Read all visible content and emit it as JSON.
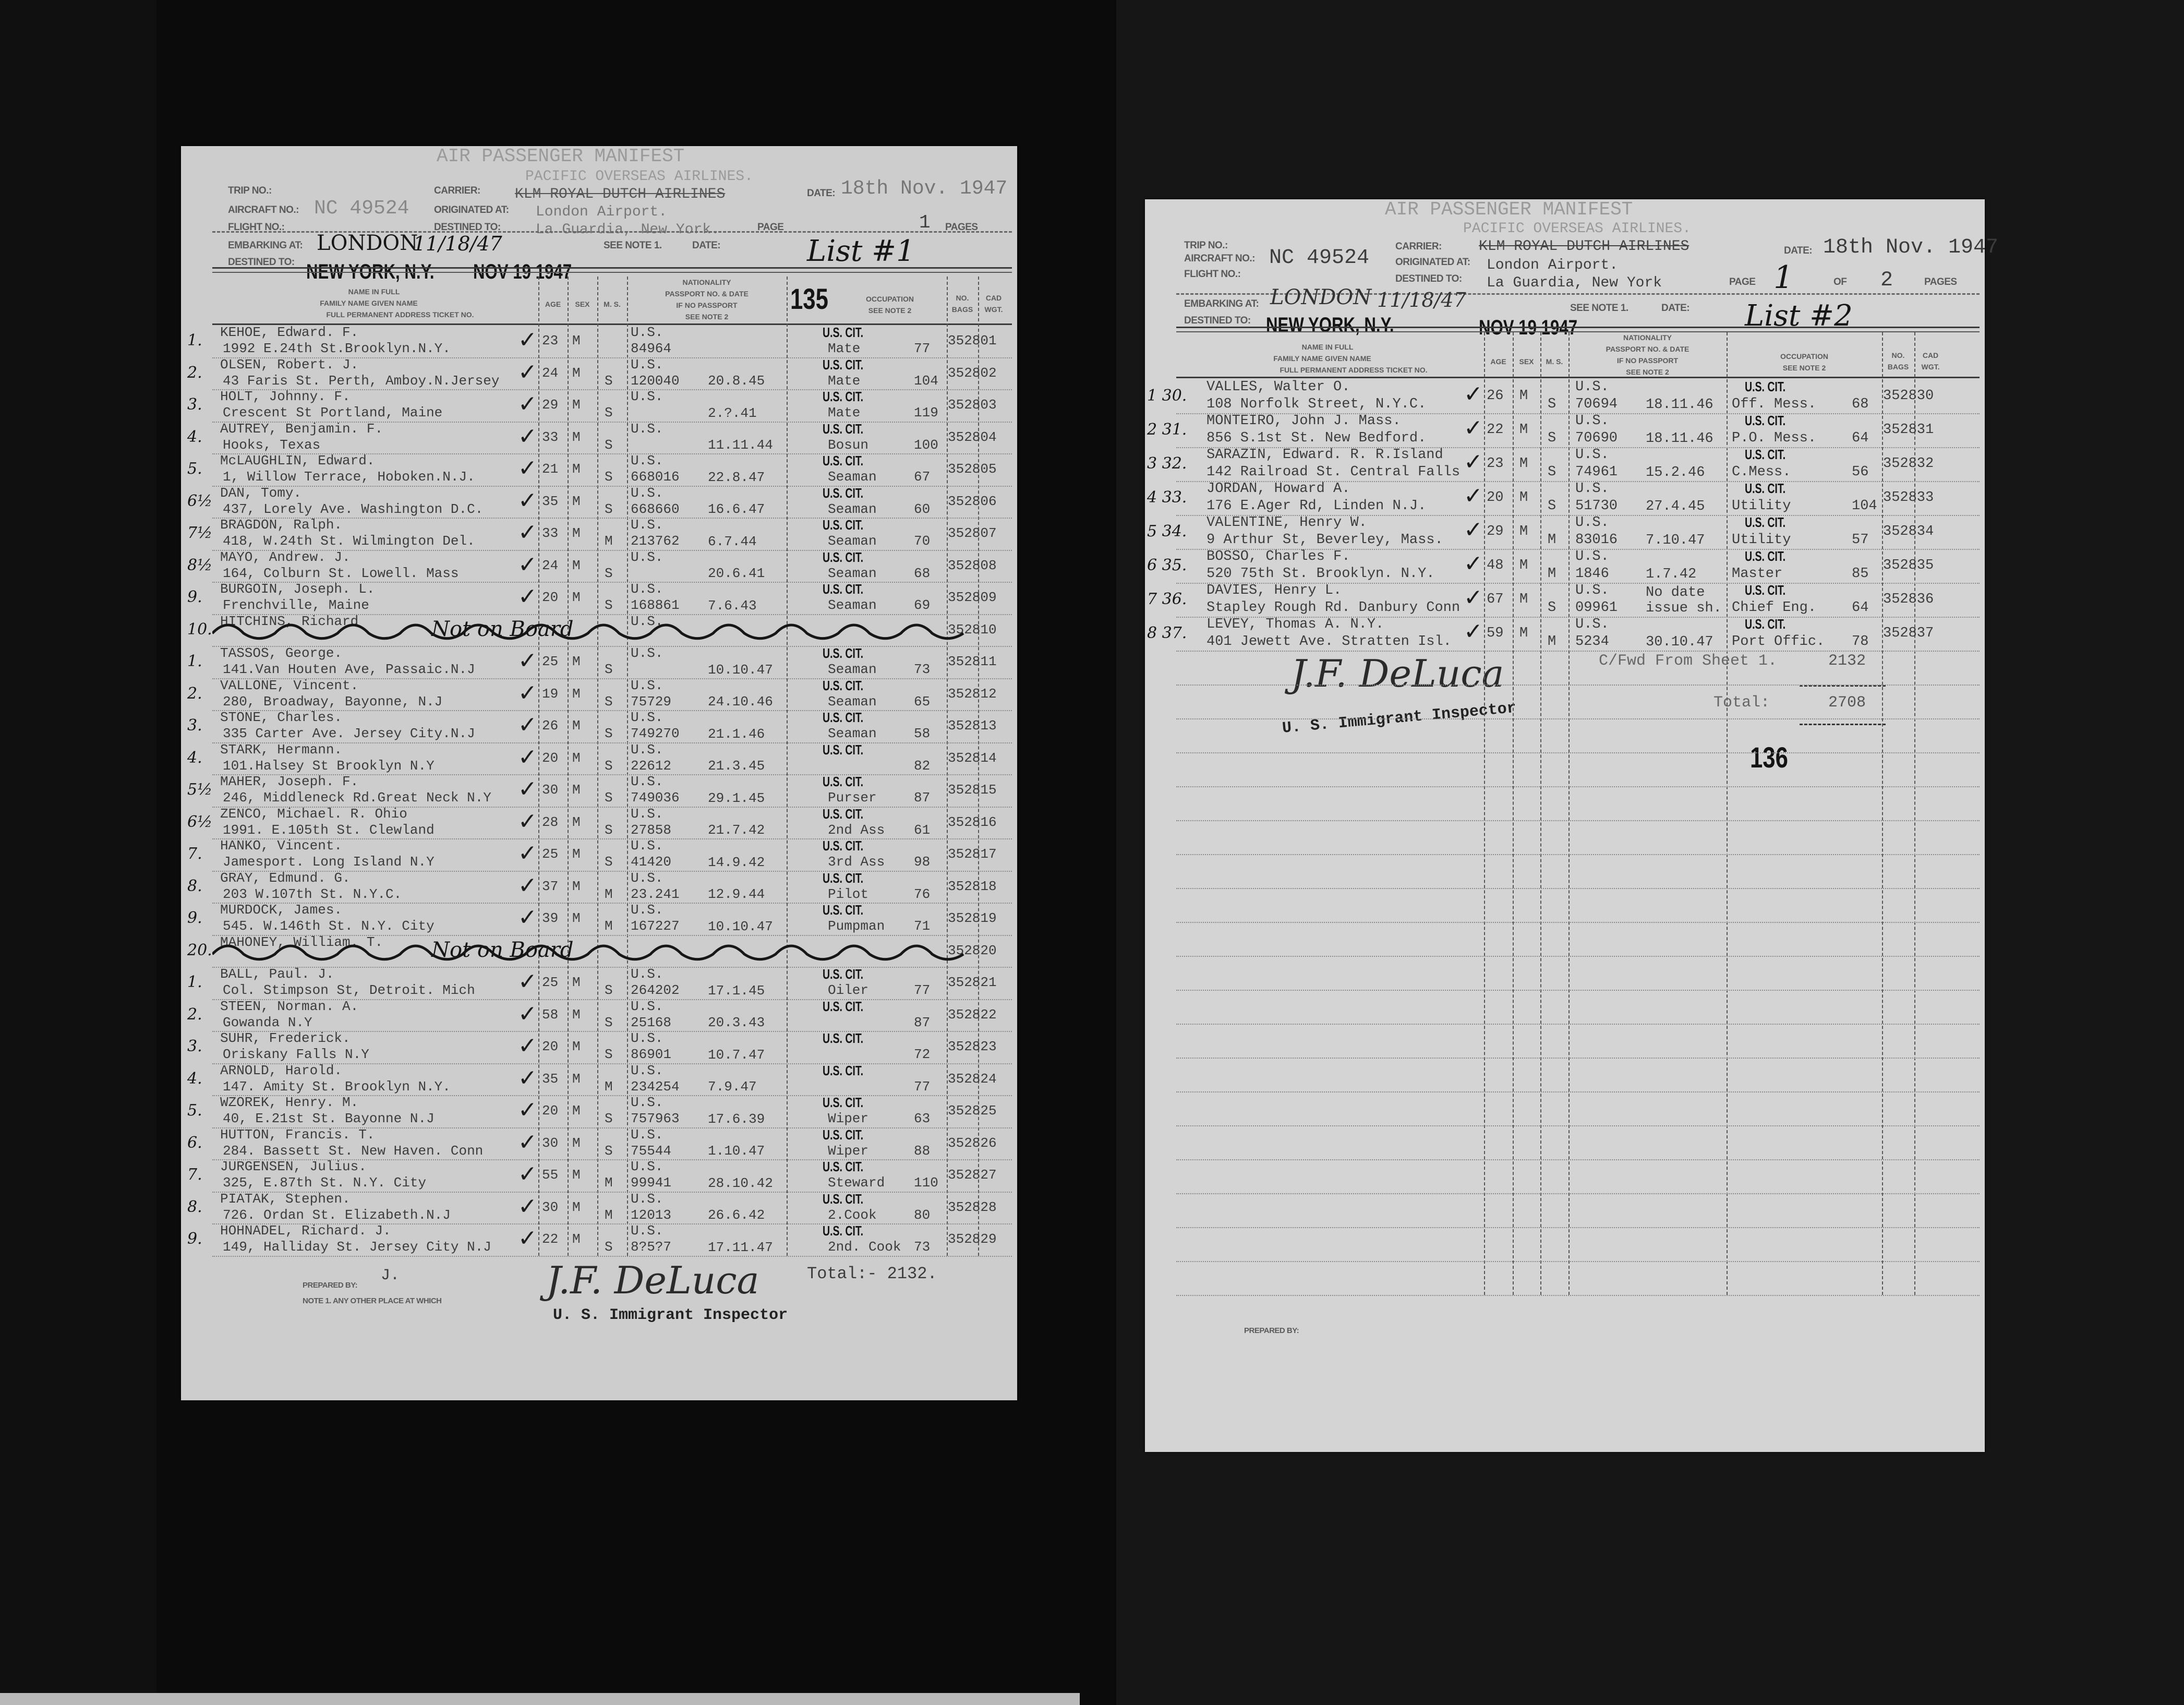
{
  "colors": {
    "paper_left": "#cdcdcd",
    "paper_right": "#d4d4d4",
    "background": "#0b0b0b",
    "ink": "#161616",
    "type": "#3c3c3c"
  },
  "left_page": {
    "form_title": "AIR PASSENGER MANIFEST",
    "carrier_heading": "PACIFIC OVERSEAS AIRLINES.",
    "labels": {
      "trip_no": "TRIP NO.:",
      "carrier": "CARRIER:",
      "date": "DATE:",
      "aircraft_no": "AIRCRAFT NO.:",
      "originated_at": "ORIGINATED AT:",
      "flight_no": "FLIGHT NO.:",
      "destined_to": "DESTINED TO:",
      "page": "PAGE",
      "pages": "PAGES",
      "embarking_at": "EMBARKING AT:",
      "see_note": "SEE NOTE 1.",
      "date2": "DATE:",
      "destined_to2": "DESTINED TO:"
    },
    "carrier_struck": "KLM ROYAL DUTCH AIRLINES",
    "date": "18th Nov. 1947",
    "aircraft_no": "NC 49524",
    "originated_at": "London Airport.",
    "destined_to": "La Guardia, New York.",
    "page_number": "1",
    "list_label": "List #1",
    "embarking_at": "LONDON",
    "embark_date": "11/18/47",
    "final_destination": "NEW YORK, N.Y.",
    "received_stamp": "NOV 19 1947",
    "sheet_stamp": "135",
    "columns": {
      "name_in_full": "NAME IN FULL",
      "family_given": "FAMILY NAME      GIVEN NAME",
      "address_ticket": "FULL PERMANENT ADDRESS        TICKET NO.",
      "age": "AGE",
      "sex": "SEX",
      "ms": "M. S.",
      "nationality": "NATIONALITY",
      "passport": "PASSPORT NO. & DATE",
      "if_no_passport": "IF NO PASSPORT",
      "see_note2": "SEE NOTE 2",
      "occupation": "OCCUPATION",
      "occ_note": "SEE NOTE 2",
      "bags": "NO. BAGS",
      "cad": "CAD WGT."
    },
    "rows": [
      {
        "num": "1.",
        "name": "KEHOE, Edward. F.",
        "address": "1992 E.24th St.Brooklyn.N.Y.",
        "age": "23",
        "sex": "M",
        "ms": "",
        "nat": "U.S.",
        "passport": "84964",
        "date": "",
        "cit": "U.S. CIT.",
        "occ": "Mate",
        "fare": "77",
        "no": "352801"
      },
      {
        "num": "2.",
        "name": "OLSEN, Robert. J.",
        "address": "43 Faris St. Perth, Amboy.N.Jersey",
        "age": "24",
        "sex": "M",
        "ms": "S",
        "nat": "U.S.",
        "passport": "120040",
        "date": "20.8.45",
        "cit": "U.S. CIT.",
        "occ": "Mate",
        "fare": "104",
        "no": "352802"
      },
      {
        "num": "3.",
        "name": "HOLT, Johnny. F.",
        "address": "Crescent St Portland, Maine",
        "age": "29",
        "sex": "M",
        "ms": "S",
        "nat": "U.S.",
        "passport": "",
        "date": "2.?.41",
        "cit": "U.S. CIT.",
        "occ": "Mate",
        "fare": "119",
        "no": "352803"
      },
      {
        "num": "4.",
        "name": "AUTREY, Benjamin. F.",
        "address": "Hooks, Texas",
        "age": "33",
        "sex": "M",
        "ms": "S",
        "nat": "U.S.",
        "passport": "",
        "date": "11.11.44",
        "cit": "U.S. CIT.",
        "occ": "Bosun",
        "fare": "100",
        "no": "352804"
      },
      {
        "num": "5.",
        "name": "McLAUGHLIN, Edward.",
        "address": "1, Willow Terrace, Hoboken.N.J.",
        "age": "21",
        "sex": "M",
        "ms": "S",
        "nat": "U.S.",
        "passport": "668016",
        "date": "22.8.47",
        "cit": "U.S. CIT.",
        "occ": "Seaman",
        "fare": "67",
        "no": "352805"
      },
      {
        "num": "6½",
        "name": "DAN, Tomy.",
        "address": "437, Lorely Ave. Washington D.C.",
        "age": "35",
        "sex": "M",
        "ms": "S",
        "nat": "U.S.",
        "passport": "668660",
        "date": "16.6.47",
        "cit": "U.S. CIT.",
        "occ": "Seaman",
        "fare": "60",
        "no": "352806"
      },
      {
        "num": "7½",
        "name": "BRAGDON, Ralph.",
        "address": "418, W.24th St. Wilmington Del.",
        "age": "33",
        "sex": "M",
        "ms": "M",
        "nat": "U.S.",
        "passport": "213762",
        "date": "6.7.44",
        "cit": "U.S. CIT.",
        "occ": "Seaman",
        "fare": "70",
        "no": "352807"
      },
      {
        "num": "8½",
        "name": "MAYO, Andrew. J.",
        "address": "164, Colburn St. Lowell. Mass",
        "age": "24",
        "sex": "M",
        "ms": "S",
        "nat": "U.S.",
        "passport": "",
        "date": "20.6.41",
        "cit": "U.S. CIT.",
        "occ": "Seaman",
        "fare": "68",
        "no": "352808"
      },
      {
        "num": "9.",
        "name": "BURGOIN, Joseph. L.",
        "address": "Frenchville, Maine",
        "age": "20",
        "sex": "M",
        "ms": "S",
        "nat": "U.S.",
        "passport": "168861",
        "date": "7.6.43",
        "cit": "U.S. CIT.",
        "occ": "Seaman",
        "fare": "69",
        "no": "352809"
      },
      {
        "num": "10.",
        "name": "HITCHINS, Richard",
        "address": "",
        "age": "",
        "sex": "",
        "ms": "",
        "nat": "U.S.",
        "passport": "",
        "date": "",
        "cit": "",
        "occ": "",
        "fare": "",
        "no": "352810",
        "crossed": true,
        "note": "Not on Board"
      },
      {
        "num": "1.",
        "name": "TASSOS, George.",
        "address": "141.Van Houten Ave, Passaic.N.J",
        "age": "25",
        "sex": "M",
        "ms": "S",
        "nat": "U.S.",
        "passport": "",
        "date": "10.10.47",
        "cit": "U.S. CIT.",
        "occ": "Seaman",
        "fare": "73",
        "no": "352811"
      },
      {
        "num": "2.",
        "name": "VALLONE, Vincent.",
        "address": "280, Broadway, Bayonne, N.J",
        "age": "19",
        "sex": "M",
        "ms": "S",
        "nat": "U.S.",
        "passport": "75729",
        "date": "24.10.46",
        "cit": "U.S. CIT.",
        "occ": "Seaman",
        "fare": "65",
        "no": "352812"
      },
      {
        "num": "3.",
        "name": "STONE, Charles.",
        "address": "335 Carter Ave. Jersey City.N.J",
        "age": "26",
        "sex": "M",
        "ms": "S",
        "nat": "U.S.",
        "passport": "749270",
        "date": "21.1.46",
        "cit": "U.S. CIT.",
        "occ": "Seaman",
        "fare": "58",
        "no": "352813"
      },
      {
        "num": "4.",
        "name": "STARK, Hermann.",
        "address": "101.Halsey St Brooklyn N.Y",
        "age": "20",
        "sex": "M",
        "ms": "S",
        "nat": "U.S.",
        "passport": "22612",
        "date": "21.3.45",
        "cit": "U.S. CIT.",
        "occ": "",
        "fare": "82",
        "no": "352814"
      },
      {
        "num": "5½",
        "name": "MAHER, Joseph. F.",
        "address": "246, Middleneck Rd.Great Neck N.Y",
        "age": "30",
        "sex": "M",
        "ms": "S",
        "nat": "U.S.",
        "passport": "749036",
        "date": "29.1.45",
        "cit": "U.S. CIT.",
        "occ": "Purser",
        "fare": "87",
        "no": "352815"
      },
      {
        "num": "6½",
        "name": "ZENCO, Michael. R.        Ohio",
        "address": "1991. E.105th St. Clewland",
        "age": "28",
        "sex": "M",
        "ms": "S",
        "nat": "U.S.",
        "passport": "27858",
        "date": "21.7.42",
        "cit": "U.S. CIT.",
        "occ": "2nd Ass",
        "fare": "61",
        "no": "352816"
      },
      {
        "num": "7.",
        "name": "HANKO, Vincent.",
        "address": "Jamesport. Long Island N.Y",
        "age": "25",
        "sex": "M",
        "ms": "S",
        "nat": "U.S.",
        "passport": "41420",
        "date": "14.9.42",
        "cit": "U.S. CIT.",
        "occ": "3rd Ass",
        "fare": "98",
        "no": "352817"
      },
      {
        "num": "8.",
        "name": "GRAY, Edmund. G.",
        "address": "203 W.107th St. N.Y.C.",
        "age": "37",
        "sex": "M",
        "ms": "M",
        "nat": "U.S.",
        "passport": "23.241",
        "date": "12.9.44",
        "cit": "U.S. CIT.",
        "occ": "Pilot",
        "fare": "76",
        "no": "352818"
      },
      {
        "num": "9.",
        "name": "MURDOCK, James.",
        "address": "545. W.146th St. N.Y. City",
        "age": "39",
        "sex": "M",
        "ms": "M",
        "nat": "U.S.",
        "passport": "167227",
        "date": "10.10.47",
        "cit": "U.S. CIT.",
        "occ": "Pumpman",
        "fare": "71",
        "no": "352819"
      },
      {
        "num": "20.",
        "name": "MAHONEY, William. T.",
        "address": "",
        "age": "",
        "sex": "",
        "ms": "",
        "nat": "",
        "passport": "",
        "date": "",
        "cit": "",
        "occ": "",
        "fare": "",
        "no": "352820",
        "crossed": true,
        "note": "Not on Board"
      },
      {
        "num": "1.",
        "name": "BALL, Paul. J.",
        "address": "Col. Stimpson St, Detroit. Mich",
        "age": "25",
        "sex": "M",
        "ms": "S",
        "nat": "U.S.",
        "passport": "264202",
        "date": "17.1.45",
        "cit": "U.S. CIT.",
        "occ": "Oiler",
        "fare": "77",
        "no": "352821"
      },
      {
        "num": "2.",
        "name": "STEEN, Norman. A.",
        "address": "Gowanda N.Y",
        "age": "58",
        "sex": "M",
        "ms": "S",
        "nat": "U.S.",
        "passport": "25168",
        "date": "20.3.43",
        "cit": "U.S. CIT.",
        "occ": "",
        "fare": "87",
        "no": "352822"
      },
      {
        "num": "3.",
        "name": "SUHR, Frederick.",
        "address": "Oriskany Falls N.Y",
        "age": "20",
        "sex": "M",
        "ms": "S",
        "nat": "U.S.",
        "passport": "86901",
        "date": "10.7.47",
        "cit": "U.S. CIT.",
        "occ": "",
        "fare": "72",
        "no": "352823"
      },
      {
        "num": "4.",
        "name": "ARNOLD, Harold.",
        "address": "147. Amity St. Brooklyn N.Y.",
        "age": "35",
        "sex": "M",
        "ms": "M",
        "nat": "U.S.",
        "passport": "234254",
        "date": "7.9.47",
        "cit": "U.S. CIT.",
        "occ": "",
        "fare": "77",
        "no": "352824"
      },
      {
        "num": "5.",
        "name": "WZOREK, Henry. M.",
        "address": "40, E.21st St. Bayonne N.J",
        "age": "20",
        "sex": "M",
        "ms": "S",
        "nat": "U.S.",
        "passport": "757963",
        "date": "17.6.39",
        "cit": "U.S. CIT.",
        "occ": "Wiper",
        "fare": "63",
        "no": "352825"
      },
      {
        "num": "6.",
        "name": "HUTTON, Francis. T.",
        "address": "284. Bassett St. New Haven. Conn",
        "age": "30",
        "sex": "M",
        "ms": "S",
        "nat": "U.S.",
        "passport": "75544",
        "date": "1.10.47",
        "cit": "U.S. CIT.",
        "occ": "Wiper",
        "fare": "88",
        "no": "352826"
      },
      {
        "num": "7.",
        "name": "JURGENSEN, Julius.",
        "address": "325, E.87th St. N.Y. City",
        "age": "55",
        "sex": "M",
        "ms": "M",
        "nat": "U.S.",
        "passport": "99941",
        "date": "28.10.42",
        "cit": "U.S. CIT.",
        "occ": "Steward",
        "fare": "110",
        "no": "352827"
      },
      {
        "num": "8.",
        "name": "PIATAK, Stephen.",
        "address": "726. Ordan St. Elizabeth.N.J",
        "age": "30",
        "sex": "M",
        "ms": "M",
        "nat": "U.S.",
        "passport": "12013",
        "date": "26.6.42",
        "cit": "U.S. CIT.",
        "occ": "2.Cook",
        "fare": "80",
        "no": "352828"
      },
      {
        "num": "9.",
        "name": "HOHNADEL, Richard. J.",
        "address": "149, Halliday St. Jersey City N.J",
        "age": "22",
        "sex": "M",
        "ms": "S",
        "nat": "U.S.",
        "passport": "8?5?7",
        "date": "17.11.47",
        "cit": "U.S. CIT.",
        "occ": "2nd. Cook",
        "fare": "73",
        "no": "352829"
      }
    ],
    "footer": {
      "initial": "J.",
      "prepared_by": "PREPARED BY:",
      "note": "NOTE 1.  ANY OTHER PLACE AT WHICH",
      "total": "Total:- 2132.",
      "signature": "J.F. DeLuca",
      "inspector": "U. S. Immigrant Inspector"
    }
  },
  "right_page": {
    "form_title": "AIR PASSENGER MANIFEST",
    "carrier_heading": "PACIFIC OVERSEAS AIRLINES.",
    "labels": {
      "trip_no": "TRIP NO.:",
      "carrier": "CARRIER:",
      "date": "DATE:",
      "aircraft_no": "AIRCRAFT NO.:",
      "originated_at": "ORIGINATED AT:",
      "flight_no": "FLIGHT NO.:",
      "destined_to": "DESTINED TO:",
      "page": "PAGE",
      "of": "OF",
      "pages": "PAGES",
      "embarking_at": "EMBARKING AT:",
      "see_note": "SEE NOTE 1.",
      "date2": "DATE:",
      "destined_to2": "DESTINED TO:"
    },
    "carrier_struck": "KLM ROYAL DUTCH AIRLINES",
    "date": "18th Nov. 1947",
    "aircraft_no": "NC 49524",
    "originated_at": "London Airport.",
    "destined_to": "La Guardia, New York",
    "page_number": "1",
    "page_total": "2",
    "list_label": "List #2",
    "embarking_at": "LONDON",
    "embark_date": "11/18/47",
    "final_destination": "NEW YORK, N.Y.",
    "received_stamp": "NOV 19 1947",
    "columns": {
      "name_in_full": "NAME IN FULL",
      "family_given": "FAMILY NAME      GIVEN NAME",
      "address_ticket": "FULL PERMANENT ADDRESS        TICKET NO.",
      "age": "AGE",
      "sex": "SEX",
      "ms": "M. S.",
      "nationality": "NATIONALITY",
      "passport": "PASSPORT NO. & DATE",
      "if_no_passport": "IF NO PASSPORT",
      "see_note2": "SEE NOTE 2",
      "occupation": "OCCUPATION",
      "occ_note": "SEE NOTE 2",
      "bags": "NO. BAGS",
      "cad": "CAD WGT."
    },
    "rows": [
      {
        "num": "1 30.",
        "name": "VALLES, Walter O.",
        "address": "108 Norfolk Street, N.Y.C.",
        "age": "26",
        "sex": "M",
        "ms": "S",
        "nat": "U.S.",
        "passport": "70694",
        "date": "18.11.46",
        "cit": "U.S. CIT.",
        "occ": "Off. Mess.",
        "fare": "68",
        "no": "352830"
      },
      {
        "num": "2 31.",
        "name": "MONTEIRO, John J.  Mass.",
        "address": "856 S.1st St. New Bedford.",
        "age": "22",
        "sex": "M",
        "ms": "S",
        "nat": "U.S.",
        "passport": "70690",
        "date": "18.11.46",
        "cit": "U.S. CIT.",
        "occ": "P.O. Mess.",
        "fare": "64",
        "no": "352831"
      },
      {
        "num": "3 32.",
        "name": "SARAZIN, Edward. R. R.Island",
        "address": "142 Railroad St. Central Falls",
        "age": "23",
        "sex": "M",
        "ms": "S",
        "nat": "U.S.",
        "passport": "74961",
        "date": "15.2.46",
        "cit": "U.S. CIT.",
        "occ": "C.Mess.",
        "fare": "56",
        "no": "352832"
      },
      {
        "num": "4 33.",
        "name": "JORDAN, Howard A.",
        "address": "176 E.Ager Rd, Linden N.J.",
        "age": "20",
        "sex": "M",
        "ms": "S",
        "nat": "U.S.",
        "passport": "51730",
        "date": "27.4.45",
        "cit": "U.S. CIT.",
        "occ": "Utility",
        "fare": "104",
        "no": "352833"
      },
      {
        "num": "5 34.",
        "name": "VALENTINE, Henry W.",
        "address": "9 Arthur St, Beverley, Mass.",
        "age": "29",
        "sex": "M",
        "ms": "M",
        "nat": "U.S.",
        "passport": "83016",
        "date": "7.10.47",
        "cit": "U.S. CIT.",
        "occ": "Utility",
        "fare": "57",
        "no": "352834"
      },
      {
        "num": "6 35.",
        "name": "BOSSO, Charles F.",
        "address": "520 75th St. Brooklyn. N.Y.",
        "age": "48",
        "sex": "M",
        "ms": "M",
        "nat": "U.S.",
        "passport": "1846",
        "date": "1.7.42",
        "cit": "U.S. CIT.",
        "occ": "Master",
        "fare": "85",
        "no": "352835"
      },
      {
        "num": "7 36.",
        "name": "DAVIES, Henry L.",
        "address": "Stapley Rough Rd. Danbury Conn",
        "age": "67",
        "sex": "M",
        "ms": "S",
        "nat": "U.S.",
        "passport": "09961",
        "date": "No date issue sh.",
        "cit": "U.S. CIT.",
        "occ": "Chief Eng.",
        "fare": "64",
        "no": "352836"
      },
      {
        "num": "8 37.",
        "name": "LEVEY, Thomas A.         N.Y.",
        "address": "401 Jewett Ave. Stratten Isl.",
        "age": "59",
        "sex": "M",
        "ms": "M",
        "nat": "U.S.",
        "passport": "5234",
        "date": "30.10.47",
        "cit": "U.S. CIT.",
        "occ": "Port Offic.",
        "fare": "78",
        "no": "352837"
      }
    ],
    "footer": {
      "signature": "J.F. DeLuca",
      "inspector": "U. S. Immigrant Inspector",
      "carried_forward": "C/Fwd From Sheet 1.",
      "carried_forward_value": "2132",
      "total_label": "Total:",
      "total_value": "2708",
      "sheet_stamp": "136",
      "prepared_by": "PREPARED BY:"
    }
  }
}
